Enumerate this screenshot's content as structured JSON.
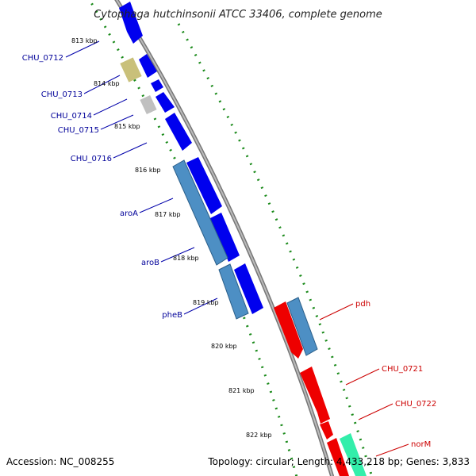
{
  "title": "Cytophaga hutchinsonii ATCC 33406, complete genome",
  "accession": "Accession: NC_008255",
  "summary": "Topology: circular; Length: 4,433,218 bp; Genes: 3,833",
  "colors": {
    "backbone": "#999999",
    "forward_gene": "#0000ee",
    "forward_cds_steel": "#4d8fc4",
    "khaki": "#c9c07a",
    "grey_gene": "#c0c0c0",
    "reverse_gene": "#ee0000",
    "teal_gene": "#33eeaa",
    "tick_green": "#1a8a1a",
    "label_blue": "#000099",
    "label_red": "#cc0000"
  },
  "kbp_ticks": [
    "813 kbp",
    "814 kbp",
    "815 kbp",
    "816 kbp",
    "817 kbp",
    "818 kbp",
    "819 kbp",
    "820 kbp",
    "821 kbp",
    "822 kbp"
  ],
  "left_labels": [
    "CHU_0712",
    "CHU_0713",
    "CHU_0714",
    "CHU_0715",
    "CHU_0716",
    "aroA",
    "aroB",
    "pheB"
  ],
  "right_labels": [
    "pdh",
    "CHU_0721",
    "CHU_0722",
    "norM"
  ]
}
